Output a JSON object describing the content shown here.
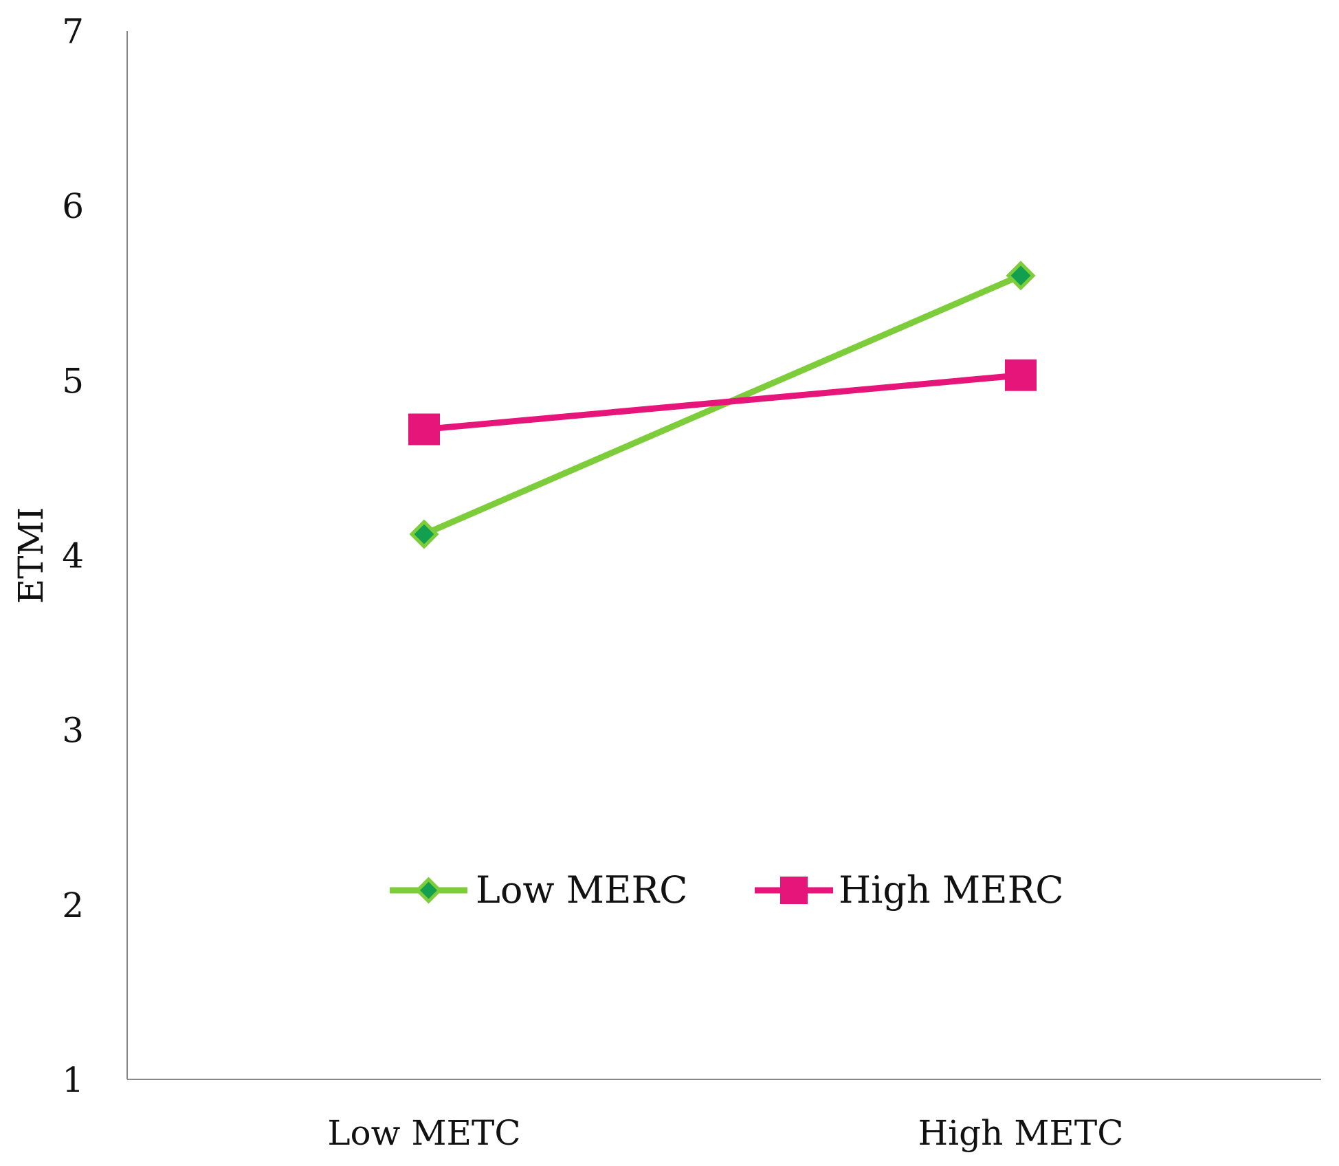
{
  "chart_data": {
    "type": "line",
    "title": "",
    "xlabel": "",
    "ylabel": "ETMI",
    "categories": [
      "Low METC",
      "High METC"
    ],
    "ylim": [
      1,
      7
    ],
    "yticks": [
      "1",
      "2",
      "3",
      "4",
      "5",
      "6",
      "7"
    ],
    "grid": false,
    "legend": {
      "position": "inside-bottom-center"
    },
    "series": [
      {
        "name": "Low MERC",
        "values": [
          4.12,
          5.6
        ],
        "color": "#7dcc3a",
        "marker": "diamond",
        "marker_color": "#12a050"
      },
      {
        "name": "High MERC",
        "values": [
          4.72,
          5.03
        ],
        "color": "#e6157a",
        "marker": "square",
        "marker_color": "#e6157a"
      }
    ]
  }
}
